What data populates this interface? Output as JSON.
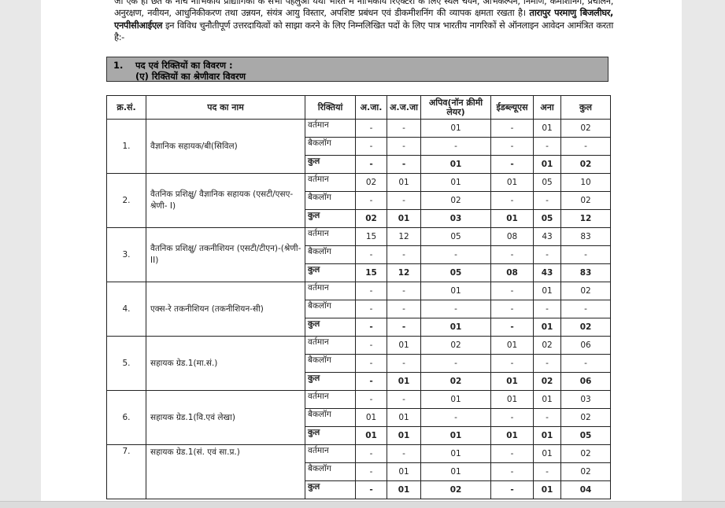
{
  "intro": {
    "text_before": "जो एक ही छत के नीचे नाभिकीय प्रौद्योगिकी के सभी पहलुओं यथा भारत में नाभिकीय रिएक्टरों के लिए स्थल चयन, अभिकल्पन, निर्माण, कमीशनिंग, प्रचालन, अनुरक्षण, नवीयन, आधुनिकीकरण तथा उन्नयन, संयंत्र आयु विस्तार, अपशिष्ट प्रबंधन एवं डीकमीशनिंग की व्यापक क्षमता रखता है। ",
    "bold": "तारापुर परमाणु बिजलीघर, एनपीसीआईएल",
    "text_after": " इन विविध चुनौतीपूर्ण उत्तरदायित्वों को साझा करने के लिए निम्नलिखित पदों के लिए पात्र भारतीय नागरिकों से ऑनलाइन आवेदन आमंत्रित करता है:-"
  },
  "section": {
    "number": "1.",
    "title": "पद एवं रिक्तियों का विवरण  :",
    "subtitle": "(ए) रिक्तियों का श्रेणीवार विवरण"
  },
  "table": {
    "headers": [
      "क्र.सं.",
      "पद का नाम",
      "रिक्तियां",
      "अ.जा.",
      "अ.ज.जा",
      "अपिव(नॉन क्रीमी लेयर)",
      "ईडब्ल्यूएस",
      "अना",
      "कुल"
    ],
    "row_types": [
      "वर्तमान",
      "बैकलॉग",
      "कुल"
    ],
    "posts": [
      {
        "sr": "1.",
        "name": "वैज्ञानिक सहायक/बी(सिविल)",
        "rows": [
          [
            "-",
            "-",
            "01",
            "-",
            "01",
            "02"
          ],
          [
            "-",
            "-",
            "-",
            "-",
            "-",
            "-"
          ],
          [
            "-",
            "-",
            "01",
            "-",
            "01",
            "02"
          ]
        ]
      },
      {
        "sr": "2.",
        "name": "वैतनिक प्रशिक्षु/ वैज्ञानिक सहायक (एसटी/एसए-श्रेणी- I)",
        "rows": [
          [
            "02",
            "01",
            "01",
            "01",
            "05",
            "10"
          ],
          [
            "-",
            "-",
            "02",
            "-",
            "-",
            "02"
          ],
          [
            "02",
            "01",
            "03",
            "01",
            "05",
            "12"
          ]
        ]
      },
      {
        "sr": "3.",
        "name": "वैतनिक प्रशिक्षु/ तकनीशियन (एसटी/टीएन)-(श्रेणी-II)",
        "rows": [
          [
            "15",
            "12",
            "05",
            "08",
            "43",
            "83"
          ],
          [
            "-",
            "-",
            "-",
            "-",
            "-",
            "-"
          ],
          [
            "15",
            "12",
            "05",
            "08",
            "43",
            "83"
          ]
        ]
      },
      {
        "sr": "4.",
        "name": "एक्स-रे तकनीशियन (तकनीशियन-सी)",
        "rows": [
          [
            "-",
            "-",
            "01",
            "-",
            "01",
            "02"
          ],
          [
            "-",
            "-",
            "-",
            "-",
            "-",
            "-"
          ],
          [
            "-",
            "-",
            "01",
            "-",
            "01",
            "02"
          ]
        ]
      },
      {
        "sr": "5.",
        "name": "सहायक ग्रेड.1(मा.सं.)",
        "rows": [
          [
            "-",
            "01",
            "02",
            "01",
            "02",
            "06"
          ],
          [
            "-",
            "-",
            "-",
            "-",
            "-",
            "-"
          ],
          [
            "-",
            "01",
            "02",
            "01",
            "02",
            "06"
          ]
        ]
      },
      {
        "sr": "6.",
        "name": "सहायक ग्रेड.1(वि.एवं लेखा)",
        "rows": [
          [
            "-",
            "-",
            "01",
            "01",
            "01",
            "03"
          ],
          [
            "01",
            "01",
            "-",
            "-",
            "-",
            "02"
          ],
          [
            "01",
            "01",
            "01",
            "01",
            "01",
            "05"
          ]
        ]
      },
      {
        "sr": "7.",
        "name": "सहायक ग्रेड.1(सं. एवं सा.प्र.)",
        "rows": [
          [
            "-",
            "-",
            "01",
            "-",
            "01",
            "02"
          ],
          [
            "-",
            "01",
            "01",
            "-",
            "-",
            "02"
          ],
          [
            "-",
            "01",
            "02",
            "-",
            "01",
            "04"
          ]
        ]
      }
    ]
  }
}
